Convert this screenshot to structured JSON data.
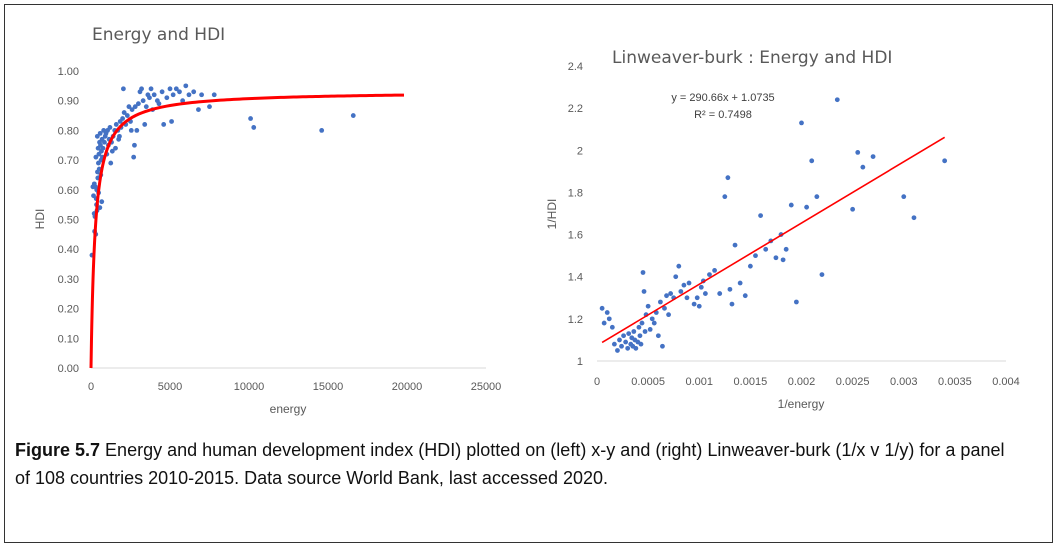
{
  "caption": {
    "label": "Figure 5.7",
    "text": "Energy and human development index (HDI) plotted on (left) x-y and (right) Linweaver-burk (1/x v 1/y) for a panel of 108 countries 2010-2015. Data source World Bank, last accessed 2020."
  },
  "chart_data": [
    {
      "type": "scatter",
      "title": "Energy and HDI",
      "xlabel": "energy",
      "ylabel": "HDI",
      "xlim": [
        0,
        25000
      ],
      "ylim": [
        0,
        1.0
      ],
      "xticks": [
        0,
        5000,
        10000,
        15000,
        20000,
        25000
      ],
      "xtick_labels": [
        "0",
        "5000",
        "10000",
        "15000",
        "20000",
        "25000"
      ],
      "yticks": [
        0,
        0.1,
        0.2,
        0.3,
        0.4,
        0.5,
        0.6,
        0.7,
        0.8,
        0.9,
        1.0
      ],
      "ytick_labels": [
        "0.00",
        "0.10",
        "0.20",
        "0.30",
        "0.40",
        "0.50",
        "0.60",
        "0.70",
        "0.80",
        "0.90",
        "1.00"
      ],
      "grid": false,
      "legend": "none",
      "point_color": "#4472c4",
      "fit_color": "#ff0000",
      "points": [
        [
          60,
          0.38
        ],
        [
          120,
          0.61
        ],
        [
          160,
          0.58
        ],
        [
          200,
          0.52
        ],
        [
          210,
          0.62
        ],
        [
          230,
          0.46
        ],
        [
          250,
          0.51
        ],
        [
          280,
          0.61
        ],
        [
          300,
          0.45
        ],
        [
          310,
          0.71
        ],
        [
          330,
          0.57
        ],
        [
          350,
          0.55
        ],
        [
          360,
          0.6
        ],
        [
          380,
          0.53
        ],
        [
          400,
          0.78
        ],
        [
          410,
          0.66
        ],
        [
          430,
          0.64
        ],
        [
          450,
          0.74
        ],
        [
          470,
          0.69
        ],
        [
          480,
          0.59
        ],
        [
          500,
          0.72
        ],
        [
          520,
          0.67
        ],
        [
          540,
          0.76
        ],
        [
          560,
          0.54
        ],
        [
          580,
          0.79
        ],
        [
          600,
          0.75
        ],
        [
          620,
          0.65
        ],
        [
          640,
          0.7
        ],
        [
          660,
          0.73
        ],
        [
          680,
          0.56
        ],
        [
          700,
          0.77
        ],
        [
          720,
          0.71
        ],
        [
          760,
          0.74
        ],
        [
          800,
          0.8
        ],
        [
          850,
          0.76
        ],
        [
          900,
          0.78
        ],
        [
          950,
          0.79
        ],
        [
          1000,
          0.72
        ],
        [
          1050,
          0.8
        ],
        [
          1100,
          0.75
        ],
        [
          1150,
          0.77
        ],
        [
          1200,
          0.81
        ],
        [
          1250,
          0.69
        ],
        [
          1300,
          0.76
        ],
        [
          1350,
          0.73
        ],
        [
          1400,
          0.78
        ],
        [
          1500,
          0.8
        ],
        [
          1550,
          0.74
        ],
        [
          1600,
          0.82
        ],
        [
          1700,
          0.8
        ],
        [
          1750,
          0.77
        ],
        [
          1800,
          0.78
        ],
        [
          1850,
          0.83
        ],
        [
          1900,
          0.81
        ],
        [
          2000,
          0.84
        ],
        [
          2050,
          0.94
        ],
        [
          2100,
          0.86
        ],
        [
          2200,
          0.82
        ],
        [
          2300,
          0.85
        ],
        [
          2400,
          0.88
        ],
        [
          2500,
          0.83
        ],
        [
          2550,
          0.8
        ],
        [
          2600,
          0.87
        ],
        [
          2700,
          0.71
        ],
        [
          2750,
          0.75
        ],
        [
          2800,
          0.88
        ],
        [
          2900,
          0.8
        ],
        [
          3000,
          0.89
        ],
        [
          3100,
          0.93
        ],
        [
          3200,
          0.94
        ],
        [
          3300,
          0.9
        ],
        [
          3400,
          0.82
        ],
        [
          3500,
          0.88
        ],
        [
          3600,
          0.92
        ],
        [
          3700,
          0.91
        ],
        [
          3800,
          0.94
        ],
        [
          3900,
          0.87
        ],
        [
          4000,
          0.92
        ],
        [
          4200,
          0.9
        ],
        [
          4300,
          0.89
        ],
        [
          4500,
          0.93
        ],
        [
          4600,
          0.82
        ],
        [
          4800,
          0.91
        ],
        [
          5000,
          0.94
        ],
        [
          5100,
          0.83
        ],
        [
          5200,
          0.92
        ],
        [
          5400,
          0.94
        ],
        [
          5600,
          0.93
        ],
        [
          5800,
          0.9
        ],
        [
          6000,
          0.95
        ],
        [
          6200,
          0.92
        ],
        [
          6500,
          0.93
        ],
        [
          6800,
          0.87
        ],
        [
          7000,
          0.92
        ],
        [
          7500,
          0.88
        ],
        [
          7800,
          0.92
        ],
        [
          10100,
          0.84
        ],
        [
          10300,
          0.81
        ],
        [
          14600,
          0.8
        ],
        [
          16600,
          0.85
        ]
      ],
      "fit_curve": {
        "a": 290.66,
        "b": 1.0735,
        "x_range": [
          30,
          20000
        ]
      }
    },
    {
      "type": "scatter",
      "title": "Linweaver-burk : Energy and HDI",
      "xlabel": "1/energy",
      "ylabel": "1/HDI",
      "xlim": [
        0,
        0.004
      ],
      "ylim": [
        1,
        2.4
      ],
      "xticks": [
        0,
        0.0005,
        0.001,
        0.0015,
        0.002,
        0.0025,
        0.003,
        0.0035,
        0.004
      ],
      "xtick_labels": [
        "0",
        "0.0005",
        "0.001",
        "0.0015",
        "0.002",
        "0.0025",
        "0.003",
        "0.0035",
        "0.004"
      ],
      "yticks": [
        1,
        1.2,
        1.4,
        1.6,
        1.8,
        2,
        2.2,
        2.4
      ],
      "ytick_labels": [
        "1",
        "1.2",
        "1.4",
        "1.6",
        "1.8",
        "2",
        "2.2",
        "2.4"
      ],
      "grid": false,
      "legend": "none",
      "point_color": "#4472c4",
      "fit_color": "#ff0000",
      "equation": "y = 290.66x + 1.0735",
      "r_squared": "R² = 0.7498",
      "fit_line": {
        "slope": 290.66,
        "intercept": 1.0735,
        "x_range": [
          5e-05,
          0.0034
        ]
      },
      "points": [
        [
          5e-05,
          1.25
        ],
        [
          7e-05,
          1.18
        ],
        [
          0.0001,
          1.23
        ],
        [
          0.00012,
          1.2
        ],
        [
          0.00015,
          1.16
        ],
        [
          0.00017,
          1.08
        ],
        [
          0.0002,
          1.05
        ],
        [
          0.00022,
          1.1
        ],
        [
          0.00024,
          1.07
        ],
        [
          0.00026,
          1.12
        ],
        [
          0.00028,
          1.09
        ],
        [
          0.0003,
          1.06
        ],
        [
          0.00031,
          1.13
        ],
        [
          0.00033,
          1.08
        ],
        [
          0.00034,
          1.11
        ],
        [
          0.00035,
          1.07
        ],
        [
          0.00036,
          1.14
        ],
        [
          0.00037,
          1.1
        ],
        [
          0.00038,
          1.06
        ],
        [
          0.0004,
          1.09
        ],
        [
          0.00041,
          1.16
        ],
        [
          0.00042,
          1.12
        ],
        [
          0.00043,
          1.08
        ],
        [
          0.00044,
          1.18
        ],
        [
          0.00045,
          1.42
        ],
        [
          0.00046,
          1.33
        ],
        [
          0.00047,
          1.14
        ],
        [
          0.00048,
          1.22
        ],
        [
          0.0005,
          1.26
        ],
        [
          0.00052,
          1.15
        ],
        [
          0.00054,
          1.2
        ],
        [
          0.00056,
          1.18
        ],
        [
          0.00058,
          1.23
        ],
        [
          0.0006,
          1.12
        ],
        [
          0.00062,
          1.28
        ],
        [
          0.00064,
          1.07
        ],
        [
          0.00066,
          1.25
        ],
        [
          0.00068,
          1.31
        ],
        [
          0.0007,
          1.22
        ],
        [
          0.00072,
          1.32
        ],
        [
          0.00075,
          1.3
        ],
        [
          0.00077,
          1.4
        ],
        [
          0.0008,
          1.45
        ],
        [
          0.00082,
          1.33
        ],
        [
          0.00085,
          1.36
        ],
        [
          0.00088,
          1.3
        ],
        [
          0.0009,
          1.37
        ],
        [
          0.00095,
          1.27
        ],
        [
          0.00098,
          1.3
        ],
        [
          0.001,
          1.26
        ],
        [
          0.00102,
          1.35
        ],
        [
          0.00104,
          1.38
        ],
        [
          0.00106,
          1.32
        ],
        [
          0.0011,
          1.41
        ],
        [
          0.00115,
          1.43
        ],
        [
          0.0012,
          1.32
        ],
        [
          0.00125,
          1.78
        ],
        [
          0.00128,
          1.87
        ],
        [
          0.0013,
          1.34
        ],
        [
          0.00132,
          1.27
        ],
        [
          0.00135,
          1.55
        ],
        [
          0.0014,
          1.37
        ],
        [
          0.00145,
          1.31
        ],
        [
          0.0015,
          1.45
        ],
        [
          0.00155,
          1.5
        ],
        [
          0.0016,
          1.69
        ],
        [
          0.00165,
          1.53
        ],
        [
          0.0017,
          1.57
        ],
        [
          0.00175,
          1.49
        ],
        [
          0.0018,
          1.6
        ],
        [
          0.00182,
          1.48
        ],
        [
          0.00185,
          1.53
        ],
        [
          0.0019,
          1.74
        ],
        [
          0.00195,
          1.28
        ],
        [
          0.002,
          2.13
        ],
        [
          0.00205,
          1.73
        ],
        [
          0.0021,
          1.95
        ],
        [
          0.00215,
          1.78
        ],
        [
          0.0022,
          1.41
        ],
        [
          0.00235,
          2.24
        ],
        [
          0.0025,
          1.72
        ],
        [
          0.00255,
          1.99
        ],
        [
          0.0026,
          1.92
        ],
        [
          0.0027,
          1.97
        ],
        [
          0.003,
          1.78
        ],
        [
          0.0031,
          1.68
        ],
        [
          0.0034,
          1.95
        ]
      ]
    }
  ]
}
